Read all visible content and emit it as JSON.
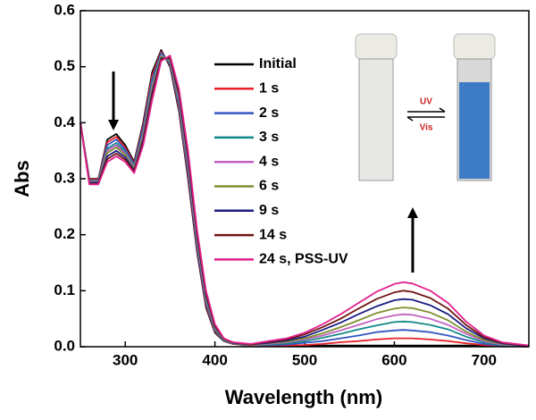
{
  "chart_data": {
    "type": "line",
    "x_label": "Wavelength (nm)",
    "y_label": "Abs",
    "x": [
      250,
      260,
      270,
      280,
      290,
      300,
      310,
      320,
      330,
      340,
      350,
      360,
      370,
      380,
      390,
      400,
      410,
      420,
      440,
      460,
      480,
      500,
      520,
      540,
      560,
      580,
      600,
      610,
      620,
      640,
      660,
      680,
      700,
      720,
      750
    ],
    "xlim": [
      250,
      750
    ],
    "xticks": [
      300,
      400,
      500,
      600,
      700
    ],
    "ylim": [
      0,
      0.6
    ],
    "yticks": [
      {
        "value": 0,
        "label": "0.0"
      },
      {
        "value": 0.1,
        "label": "0.1"
      },
      {
        "value": 0.2,
        "label": "0.2"
      },
      {
        "value": 0.3,
        "label": "0.3"
      },
      {
        "value": 0.4,
        "label": "0.4"
      },
      {
        "value": 0.5,
        "label": "0.5"
      },
      {
        "value": 0.6,
        "label": "0.6"
      }
    ],
    "series": [
      {
        "name": "Initial",
        "color": "#000000",
        "values": [
          0.4,
          0.3,
          0.3,
          0.37,
          0.38,
          0.36,
          0.33,
          0.4,
          0.49,
          0.53,
          0.5,
          0.42,
          0.3,
          0.17,
          0.07,
          0.025,
          0.01,
          0.005,
          0.002,
          0.002,
          0.002,
          0.002,
          0.002,
          0.002,
          0.002,
          0.002,
          0.002,
          0.002,
          0.002,
          0.002,
          0.002,
          0.002,
          0.002,
          0.001,
          0.001
        ]
      },
      {
        "name": "1 s",
        "color": "#e8202a",
        "values": [
          0.4,
          0.299,
          0.299,
          0.365,
          0.375,
          0.356,
          0.327,
          0.395,
          0.484,
          0.527,
          0.503,
          0.425,
          0.307,
          0.175,
          0.074,
          0.027,
          0.011,
          0.005,
          0.001,
          0.001,
          0.002,
          0.003,
          0.005,
          0.008,
          0.01,
          0.013,
          0.015,
          0.015,
          0.015,
          0.013,
          0.01,
          0.006,
          0.003,
          0.001,
          0
        ]
      },
      {
        "name": "2 s",
        "color": "#3355c0",
        "values": [
          0.4,
          0.297,
          0.297,
          0.36,
          0.37,
          0.352,
          0.325,
          0.39,
          0.477,
          0.525,
          0.505,
          0.43,
          0.313,
          0.18,
          0.078,
          0.029,
          0.011,
          0.006,
          0.001,
          0.003,
          0.004,
          0.007,
          0.01,
          0.015,
          0.02,
          0.026,
          0.029,
          0.03,
          0.029,
          0.026,
          0.02,
          0.012,
          0.005,
          0.002,
          0.001
        ]
      },
      {
        "name": "3 s",
        "color": "#138a8a",
        "values": [
          0.4,
          0.296,
          0.296,
          0.354,
          0.364,
          0.348,
          0.322,
          0.384,
          0.471,
          0.522,
          0.508,
          0.436,
          0.32,
          0.186,
          0.082,
          0.031,
          0.012,
          0.006,
          0.002,
          0.004,
          0.006,
          0.01,
          0.016,
          0.023,
          0.031,
          0.038,
          0.044,
          0.045,
          0.044,
          0.039,
          0.031,
          0.018,
          0.008,
          0.003,
          0.001
        ]
      },
      {
        "name": "4 s",
        "color": "#c462c4",
        "values": [
          0.4,
          0.295,
          0.295,
          0.35,
          0.36,
          0.345,
          0.32,
          0.38,
          0.465,
          0.52,
          0.51,
          0.44,
          0.325,
          0.19,
          0.085,
          0.033,
          0.013,
          0.007,
          0.002,
          0.005,
          0.008,
          0.013,
          0.02,
          0.029,
          0.039,
          0.049,
          0.056,
          0.058,
          0.057,
          0.05,
          0.039,
          0.023,
          0.01,
          0.004,
          0.001
        ]
      },
      {
        "name": "6 s",
        "color": "#7f8f2f",
        "values": [
          0.4,
          0.294,
          0.294,
          0.346,
          0.356,
          0.342,
          0.318,
          0.376,
          0.46,
          0.518,
          0.512,
          0.444,
          0.331,
          0.194,
          0.088,
          0.034,
          0.013,
          0.007,
          0.003,
          0.006,
          0.009,
          0.015,
          0.024,
          0.035,
          0.047,
          0.06,
          0.068,
          0.07,
          0.069,
          0.061,
          0.047,
          0.027,
          0.012,
          0.005,
          0.001
        ]
      },
      {
        "name": "9 s",
        "color": "#1c1c82",
        "values": [
          0.4,
          0.293,
          0.293,
          0.34,
          0.35,
          0.338,
          0.315,
          0.37,
          0.453,
          0.515,
          0.515,
          0.45,
          0.337,
          0.2,
          0.092,
          0.036,
          0.014,
          0.007,
          0.004,
          0.007,
          0.011,
          0.018,
          0.03,
          0.043,
          0.058,
          0.072,
          0.083,
          0.085,
          0.084,
          0.074,
          0.058,
          0.033,
          0.015,
          0.006,
          0.001
        ]
      },
      {
        "name": "14 s",
        "color": "#701414",
        "values": [
          0.4,
          0.291,
          0.291,
          0.335,
          0.345,
          0.334,
          0.313,
          0.365,
          0.447,
          0.513,
          0.517,
          0.455,
          0.344,
          0.205,
          0.096,
          0.038,
          0.014,
          0.008,
          0.004,
          0.009,
          0.013,
          0.022,
          0.035,
          0.05,
          0.068,
          0.085,
          0.097,
          0.1,
          0.098,
          0.087,
          0.068,
          0.039,
          0.017,
          0.007,
          0.002
        ]
      },
      {
        "name": "24 s, PSS-UV",
        "color": "#e0208c",
        "values": [
          0.4,
          0.29,
          0.29,
          0.33,
          0.34,
          0.33,
          0.31,
          0.36,
          0.44,
          0.51,
          0.52,
          0.46,
          0.35,
          0.21,
          0.1,
          0.04,
          0.015,
          0.008,
          0.005,
          0.01,
          0.015,
          0.025,
          0.04,
          0.058,
          0.078,
          0.098,
          0.112,
          0.115,
          0.113,
          0.1,
          0.078,
          0.045,
          0.02,
          0.008,
          0.002
        ]
      }
    ],
    "inset_labels": [
      "UV",
      "Vis"
    ]
  }
}
